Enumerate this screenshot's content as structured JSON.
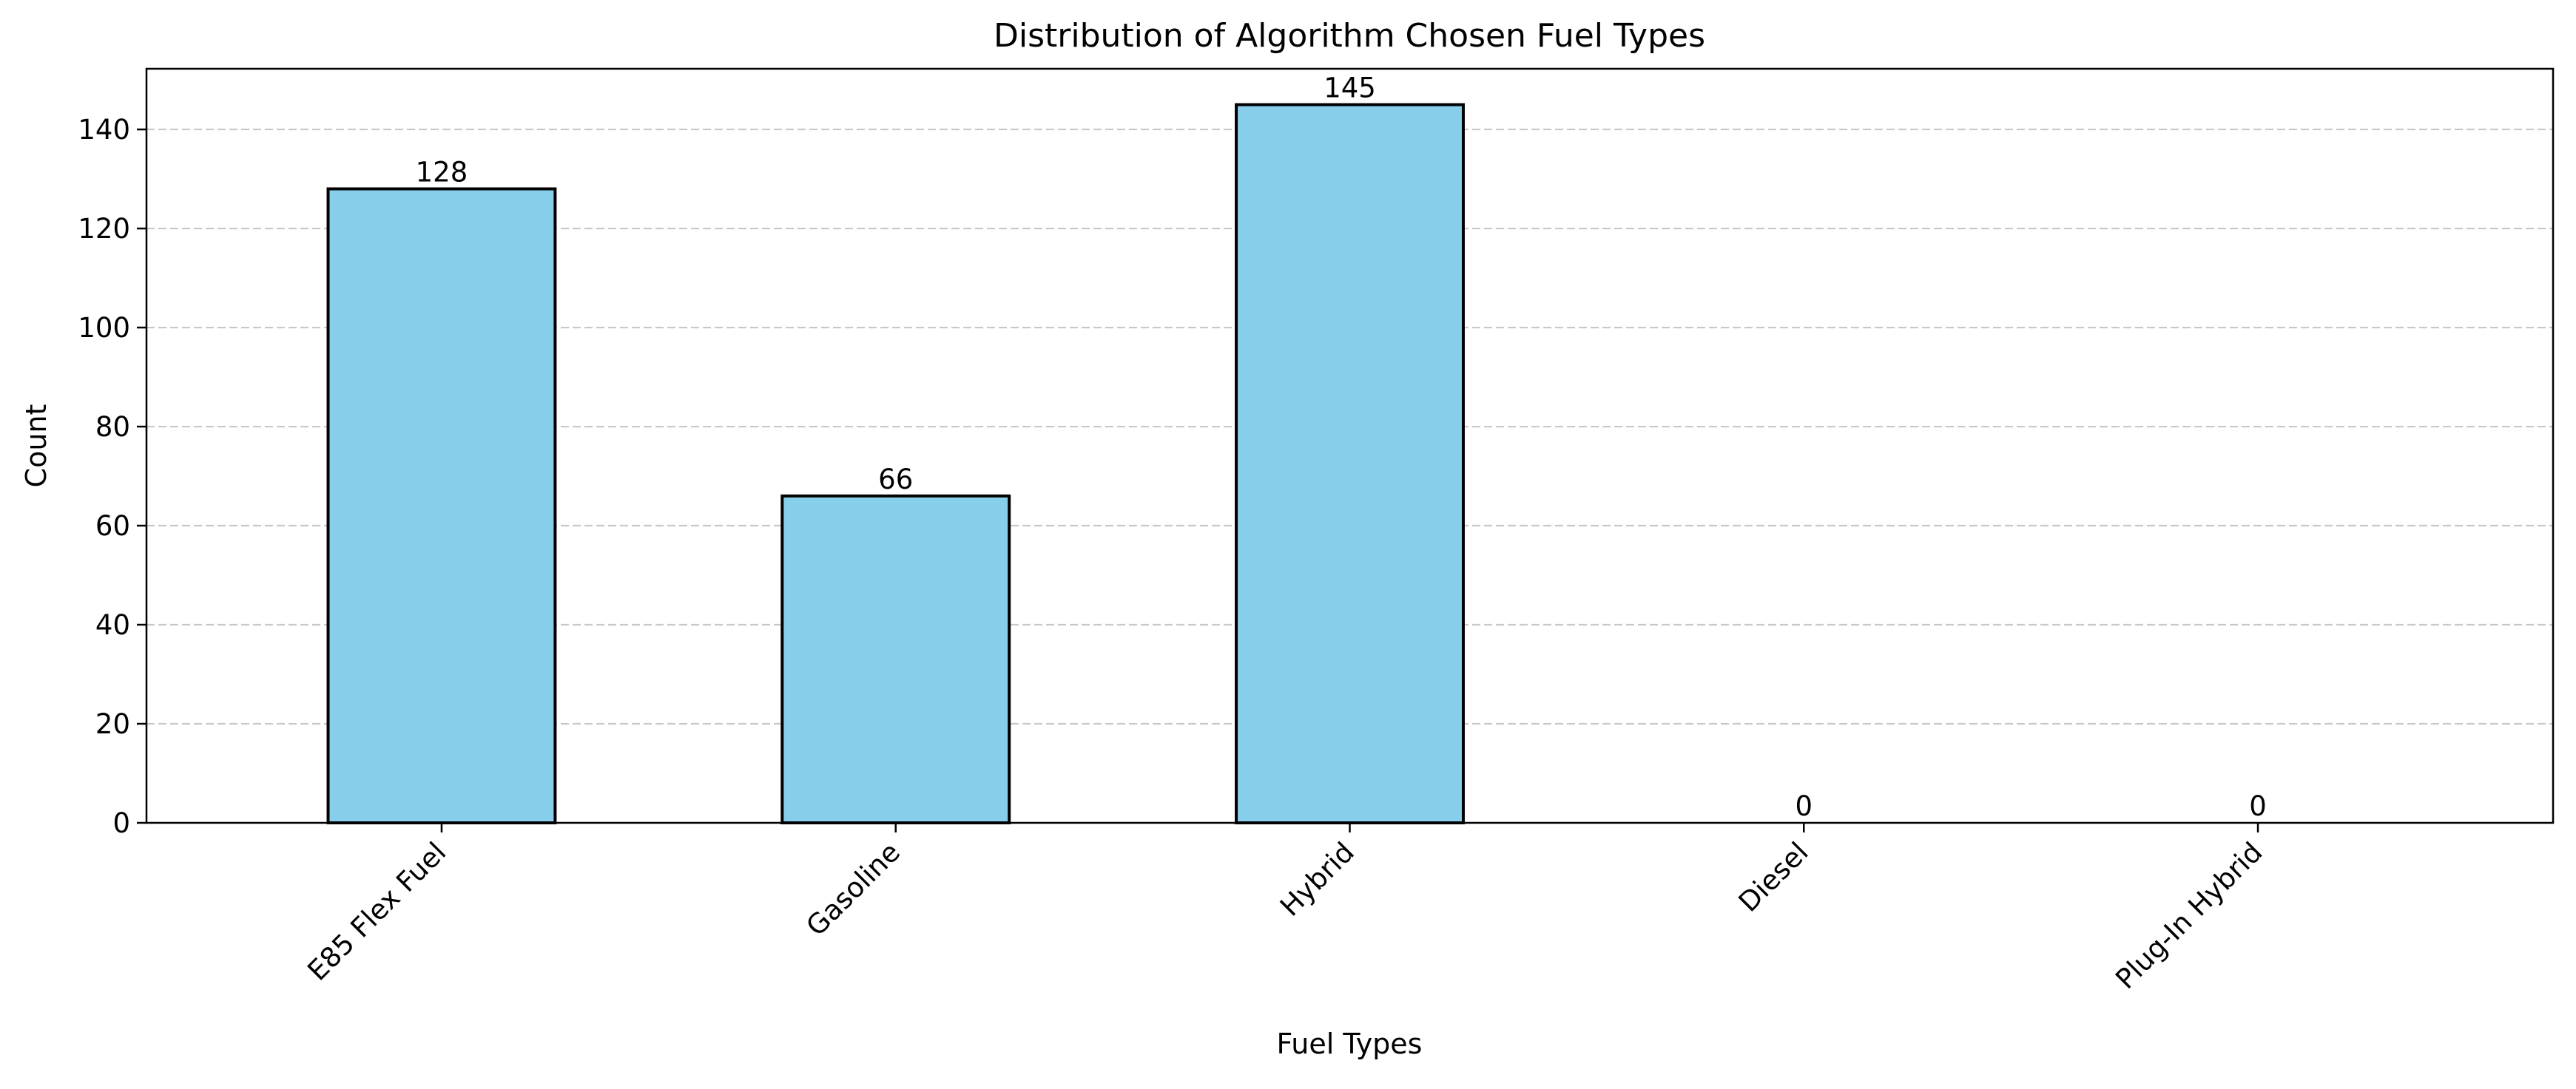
{
  "chart_data": {
    "type": "bar",
    "title": "Distribution of Algorithm Chosen Fuel Types",
    "xlabel": "Fuel Types",
    "ylabel": "Count",
    "categories": [
      "E85 Flex Fuel",
      "Gasoline",
      "Hybrid",
      "Diesel",
      "Plug-In Hybrid"
    ],
    "values": [
      128,
      66,
      145,
      0,
      0
    ],
    "data_labels": [
      "128",
      "66",
      "145",
      "0",
      "0"
    ],
    "ylim": [
      0,
      152.25
    ],
    "yticks": [
      0,
      20,
      40,
      60,
      80,
      100,
      120,
      140
    ],
    "ytick_labels": [
      "0",
      "20",
      "40",
      "60",
      "80",
      "100",
      "120",
      "140"
    ],
    "grid": "y-axis dashed",
    "colors": {
      "bar_fill": "#87CEEB",
      "bar_edge": "#000000",
      "grid": "#c8c8c8"
    }
  }
}
